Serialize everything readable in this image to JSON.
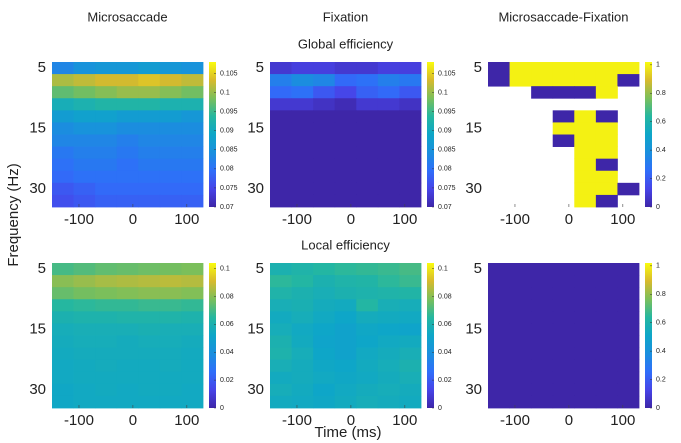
{
  "figure": {
    "xlabel": "Time (ms)",
    "ylabel": "Frequency (Hz)",
    "colormap": [
      "#3e26a8",
      "#4744e8",
      "#2f6efa",
      "#1a8fde",
      "#0ea6c8",
      "#25b7a0",
      "#7bbf5b",
      "#d8ba2d",
      "#f9fb0e"
    ]
  },
  "chart_data": [
    {
      "type": "heatmap",
      "title": "Microsaccade",
      "x": [
        -130,
        -90,
        -50,
        -10,
        30,
        70,
        110
      ],
      "xlim": [
        -150,
        130
      ],
      "xticks": [
        -100,
        0,
        100
      ],
      "y": [
        "5",
        null,
        null,
        null,
        null,
        "15",
        null,
        null,
        null,
        null,
        "30",
        null
      ],
      "clim": [
        0.07,
        0.108
      ],
      "cticks": [
        0.07,
        0.075,
        0.08,
        0.085,
        0.09,
        0.095,
        0.1,
        0.105
      ],
      "z": [
        [
          0.083,
          0.085,
          0.086,
          0.086,
          0.087,
          0.086,
          0.085
        ],
        [
          0.101,
          0.102,
          0.103,
          0.103,
          0.104,
          0.103,
          0.102
        ],
        [
          0.097,
          0.098,
          0.099,
          0.1,
          0.1,
          0.099,
          0.098
        ],
        [
          0.091,
          0.092,
          0.093,
          0.093,
          0.093,
          0.092,
          0.092
        ],
        [
          0.087,
          0.088,
          0.088,
          0.087,
          0.087,
          0.087,
          0.086
        ],
        [
          0.084,
          0.085,
          0.085,
          0.084,
          0.084,
          0.084,
          0.084
        ],
        [
          0.083,
          0.083,
          0.083,
          0.082,
          0.083,
          0.083,
          0.083
        ],
        [
          0.081,
          0.082,
          0.082,
          0.081,
          0.082,
          0.082,
          0.082
        ],
        [
          0.08,
          0.081,
          0.081,
          0.08,
          0.081,
          0.081,
          0.081
        ],
        [
          0.079,
          0.08,
          0.08,
          0.08,
          0.08,
          0.08,
          0.08
        ],
        [
          0.077,
          0.078,
          0.079,
          0.079,
          0.079,
          0.079,
          0.079
        ],
        [
          0.076,
          0.077,
          0.078,
          0.078,
          0.078,
          0.078,
          0.078
        ]
      ]
    },
    {
      "type": "heatmap",
      "title": "Fixation",
      "subtitle": "Global efficiency",
      "x": [
        -130,
        -90,
        -50,
        -10,
        30,
        70,
        110
      ],
      "xlim": [
        -150,
        130
      ],
      "xticks": [
        -100,
        0,
        100
      ],
      "y": [
        "5",
        null,
        null,
        null,
        null,
        "15",
        null,
        null,
        null,
        null,
        "30",
        null
      ],
      "clim": [
        0.07,
        0.108
      ],
      "cticks": [
        0.07,
        0.075,
        0.08,
        0.085,
        0.09,
        0.095,
        0.1,
        0.105
      ],
      "z": [
        [
          0.073,
          0.074,
          0.074,
          0.073,
          0.073,
          0.074,
          0.074
        ],
        [
          0.082,
          0.084,
          0.083,
          0.079,
          0.08,
          0.082,
          0.081
        ],
        [
          0.079,
          0.08,
          0.077,
          0.075,
          0.078,
          0.079,
          0.077
        ],
        [
          0.073,
          0.073,
          0.072,
          0.071,
          0.073,
          0.073,
          0.072
        ],
        [
          0.07,
          0.07,
          0.07,
          0.07,
          0.07,
          0.07,
          0.07
        ],
        [
          0.07,
          0.07,
          0.07,
          0.07,
          0.07,
          0.07,
          0.07
        ],
        [
          0.07,
          0.07,
          0.07,
          0.07,
          0.07,
          0.07,
          0.07
        ],
        [
          0.07,
          0.07,
          0.07,
          0.07,
          0.07,
          0.07,
          0.07
        ],
        [
          0.07,
          0.07,
          0.07,
          0.07,
          0.07,
          0.07,
          0.07
        ],
        [
          0.07,
          0.07,
          0.07,
          0.07,
          0.07,
          0.07,
          0.07
        ],
        [
          0.07,
          0.07,
          0.07,
          0.07,
          0.07,
          0.07,
          0.07
        ],
        [
          0.07,
          0.07,
          0.07,
          0.07,
          0.07,
          0.07,
          0.07
        ]
      ]
    },
    {
      "type": "heatmap",
      "title": "Microsaccade-Fixation",
      "x": [
        -130,
        -90,
        -50,
        -10,
        30,
        70,
        110
      ],
      "xlim": [
        -150,
        130
      ],
      "xticks": [
        -100,
        0,
        100
      ],
      "y": [
        "5",
        null,
        null,
        null,
        null,
        "15",
        null,
        null,
        null,
        null,
        "30",
        null
      ],
      "clim": [
        0,
        1.02
      ],
      "cticks": [
        0,
        0.2,
        0.4,
        0.6,
        0.8,
        1
      ],
      "z": [
        [
          0,
          1,
          1,
          1,
          1,
          1,
          1
        ],
        [
          0,
          1,
          1,
          1,
          1,
          1,
          0
        ],
        [
          null,
          null,
          0,
          0,
          0,
          1,
          null
        ],
        [
          null,
          null,
          null,
          null,
          null,
          null,
          null
        ],
        [
          null,
          null,
          null,
          0,
          1,
          0,
          null
        ],
        [
          null,
          null,
          null,
          1,
          1,
          1,
          null
        ],
        [
          null,
          null,
          null,
          0,
          1,
          1,
          null
        ],
        [
          null,
          null,
          null,
          null,
          1,
          1,
          null
        ],
        [
          null,
          null,
          null,
          null,
          1,
          0,
          null
        ],
        [
          null,
          null,
          null,
          null,
          1,
          1,
          null
        ],
        [
          null,
          null,
          null,
          null,
          1,
          1,
          0
        ],
        [
          null,
          null,
          null,
          null,
          1,
          0,
          null
        ]
      ]
    },
    {
      "type": "heatmap",
      "x": [
        -130,
        -90,
        -50,
        -10,
        30,
        70,
        110
      ],
      "xlim": [
        -150,
        130
      ],
      "xticks": [
        -100,
        0,
        100
      ],
      "y": [
        "5",
        null,
        null,
        null,
        null,
        "15",
        null,
        null,
        null,
        null,
        "30",
        null
      ],
      "clim": [
        0,
        0.104
      ],
      "cticks": [
        0,
        0.02,
        0.04,
        0.06,
        0.08,
        0.1
      ],
      "z": [
        [
          0.07,
          0.072,
          0.074,
          0.075,
          0.076,
          0.077,
          0.078
        ],
        [
          0.08,
          0.082,
          0.084,
          0.085,
          0.086,
          0.087,
          0.086
        ],
        [
          0.075,
          0.077,
          0.078,
          0.079,
          0.08,
          0.08,
          0.079
        ],
        [
          0.065,
          0.066,
          0.067,
          0.067,
          0.068,
          0.068,
          0.067
        ],
        [
          0.06,
          0.061,
          0.061,
          0.062,
          0.062,
          0.062,
          0.061
        ],
        [
          0.057,
          0.058,
          0.058,
          0.058,
          0.059,
          0.058,
          0.058
        ],
        [
          0.056,
          0.057,
          0.057,
          0.056,
          0.057,
          0.057,
          0.056
        ],
        [
          0.055,
          0.056,
          0.056,
          0.056,
          0.056,
          0.056,
          0.055
        ],
        [
          0.054,
          0.055,
          0.056,
          0.055,
          0.055,
          0.056,
          0.055
        ],
        [
          0.054,
          0.055,
          0.055,
          0.055,
          0.055,
          0.055,
          0.055
        ],
        [
          0.053,
          0.054,
          0.055,
          0.054,
          0.055,
          0.055,
          0.054
        ],
        [
          0.053,
          0.054,
          0.054,
          0.054,
          0.054,
          0.054,
          0.054
        ]
      ]
    },
    {
      "type": "heatmap",
      "subtitle": "Local efficiency",
      "x": [
        -130,
        -90,
        -50,
        -10,
        30,
        70,
        110
      ],
      "xlim": [
        -150,
        130
      ],
      "xticks": [
        -100,
        0,
        100
      ],
      "y": [
        "5",
        null,
        null,
        null,
        null,
        "15",
        null,
        null,
        null,
        null,
        "30",
        null
      ],
      "clim": [
        0,
        0.104
      ],
      "cticks": [
        0,
        0.02,
        0.04,
        0.06,
        0.08,
        0.1
      ],
      "z": [
        [
          0.06,
          0.062,
          0.064,
          0.066,
          0.067,
          0.068,
          0.07
        ],
        [
          0.066,
          0.064,
          0.06,
          0.062,
          0.063,
          0.066,
          0.068
        ],
        [
          0.062,
          0.06,
          0.058,
          0.06,
          0.061,
          0.062,
          0.063
        ],
        [
          0.058,
          0.059,
          0.056,
          0.055,
          0.064,
          0.058,
          0.057
        ],
        [
          0.055,
          0.057,
          0.054,
          0.052,
          0.056,
          0.055,
          0.054
        ],
        [
          0.057,
          0.054,
          0.052,
          0.05,
          0.053,
          0.052,
          0.051
        ],
        [
          0.06,
          0.055,
          0.051,
          0.05,
          0.052,
          0.054,
          0.055
        ],
        [
          0.061,
          0.057,
          0.052,
          0.05,
          0.054,
          0.056,
          0.058
        ],
        [
          0.058,
          0.056,
          0.053,
          0.052,
          0.055,
          0.057,
          0.06
        ],
        [
          0.055,
          0.056,
          0.054,
          0.053,
          0.054,
          0.056,
          0.058
        ],
        [
          0.057,
          0.055,
          0.052,
          0.054,
          0.056,
          0.057,
          0.056
        ],
        [
          0.055,
          0.054,
          0.053,
          0.055,
          0.057,
          0.056,
          0.055
        ]
      ]
    },
    {
      "type": "heatmap",
      "x": [
        -130,
        -90,
        -50,
        -10,
        30,
        70,
        110
      ],
      "xlim": [
        -150,
        130
      ],
      "xticks": [
        -100,
        0,
        100
      ],
      "y": [
        "5",
        null,
        null,
        null,
        null,
        "15",
        null,
        null,
        null,
        null,
        "30",
        null
      ],
      "clim": [
        0,
        1.02
      ],
      "cticks": [
        0,
        0.2,
        0.4,
        0.6,
        0.8,
        1
      ],
      "z": [
        [
          0,
          0,
          0,
          0,
          0,
          0,
          0
        ],
        [
          0,
          0,
          0,
          0,
          0,
          0,
          0
        ],
        [
          0,
          0,
          0,
          0,
          0,
          0,
          0
        ],
        [
          0,
          0,
          0,
          0,
          0,
          0,
          0
        ],
        [
          0,
          0,
          0,
          0,
          0,
          0,
          0
        ],
        [
          0,
          0,
          0,
          0,
          0,
          0,
          0
        ],
        [
          0,
          0,
          0,
          0,
          0,
          0,
          0
        ],
        [
          0,
          0,
          0,
          0,
          0,
          0,
          0
        ],
        [
          0,
          0,
          0,
          0,
          0,
          0,
          0
        ],
        [
          0,
          0,
          0,
          0,
          0,
          0,
          0
        ],
        [
          0,
          0,
          0,
          0,
          0,
          0,
          0
        ],
        [
          0,
          0,
          0,
          0,
          0,
          0,
          0
        ]
      ]
    }
  ]
}
